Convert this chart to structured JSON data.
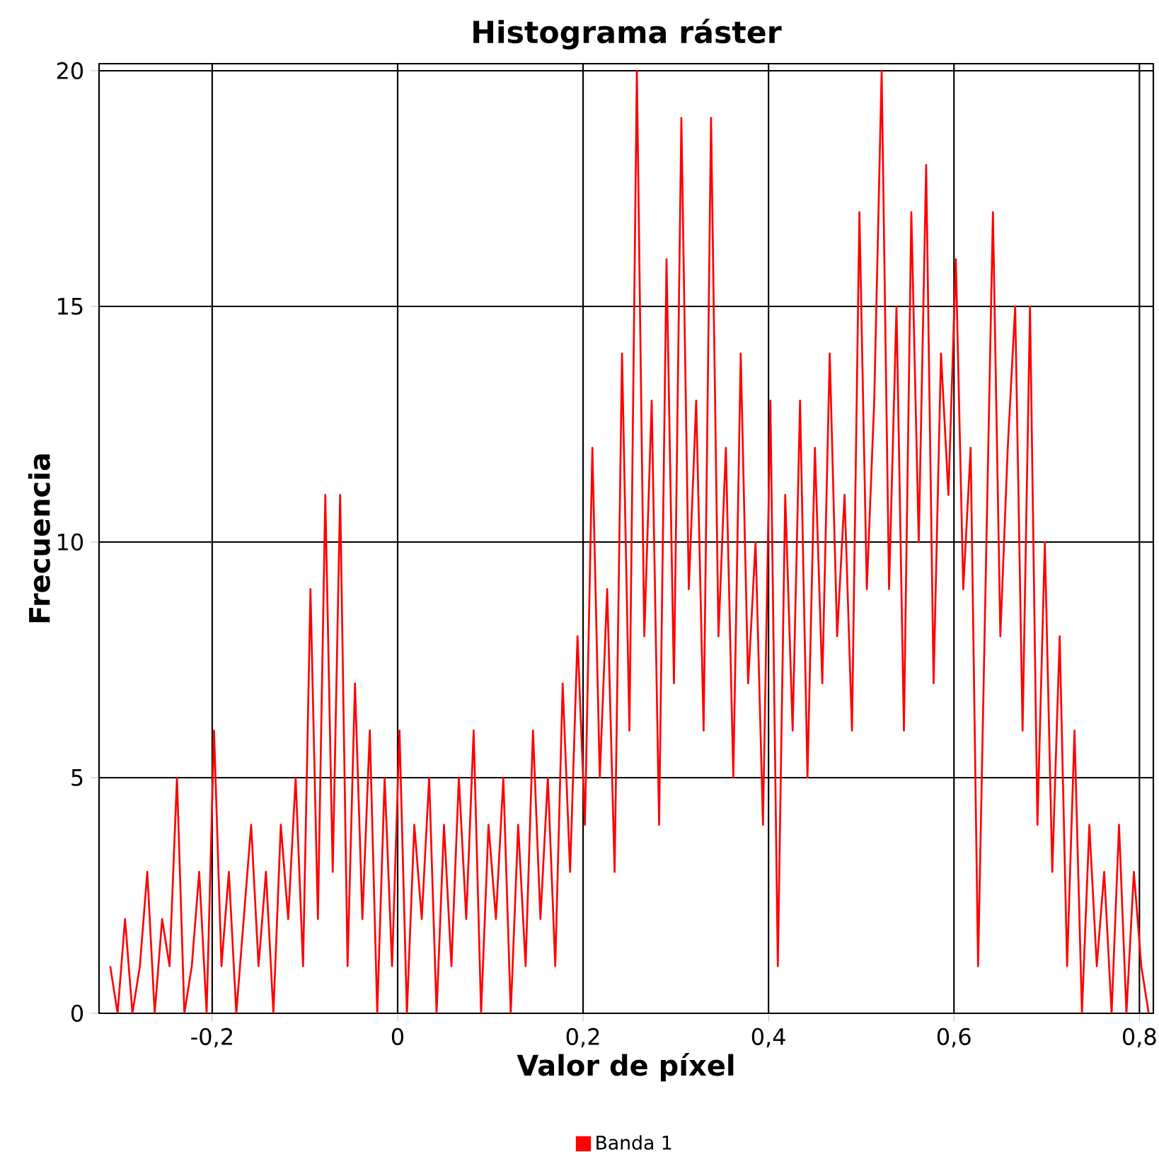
{
  "chart_data": {
    "type": "line",
    "title": "Histograma ráster",
    "xlabel": "Valor de píxel",
    "ylabel": "Frecuencia",
    "x": [
      -0.31,
      -0.302,
      -0.294,
      -0.286,
      -0.278,
      -0.27,
      -0.262,
      -0.254,
      -0.246,
      -0.238,
      -0.23,
      -0.222,
      -0.214,
      -0.206,
      -0.198,
      -0.19,
      -0.182,
      -0.174,
      -0.166,
      -0.158,
      -0.15,
      -0.142,
      -0.134,
      -0.126,
      -0.118,
      -0.11,
      -0.102,
      -0.094,
      -0.086,
      -0.078,
      -0.07,
      -0.062,
      -0.054,
      -0.046,
      -0.038,
      -0.03,
      -0.022,
      -0.014,
      -0.006,
      0.002,
      0.01,
      0.018,
      0.026,
      0.034,
      0.042,
      0.05,
      0.058,
      0.066,
      0.074,
      0.082,
      0.09,
      0.098,
      0.106,
      0.114,
      0.122,
      0.13,
      0.138,
      0.146,
      0.154,
      0.162,
      0.17,
      0.178,
      0.186,
      0.194,
      0.202,
      0.21,
      0.218,
      0.226,
      0.234,
      0.242,
      0.25,
      0.258,
      0.266,
      0.274,
      0.282,
      0.29,
      0.298,
      0.306,
      0.314,
      0.322,
      0.33,
      0.338,
      0.346,
      0.354,
      0.362,
      0.37,
      0.378,
      0.386,
      0.394,
      0.402,
      0.41,
      0.418,
      0.426,
      0.434,
      0.442,
      0.45,
      0.458,
      0.466,
      0.474,
      0.482,
      0.49,
      0.498,
      0.506,
      0.514,
      0.522,
      0.53,
      0.538,
      0.546,
      0.554,
      0.562,
      0.57,
      0.578,
      0.586,
      0.594,
      0.602,
      0.61,
      0.618,
      0.626,
      0.634,
      0.642,
      0.65,
      0.658,
      0.666,
      0.674,
      0.682,
      0.69,
      0.698,
      0.706,
      0.714,
      0.722,
      0.73,
      0.738,
      0.746,
      0.754,
      0.762,
      0.77,
      0.778,
      0.786,
      0.794,
      0.802,
      0.81
    ],
    "series": [
      {
        "name": "Banda 1",
        "color": "#ff0000",
        "values": [
          1,
          0,
          2,
          0,
          1,
          3,
          0,
          2,
          1,
          5,
          0,
          1,
          3,
          0,
          6,
          1,
          3,
          0,
          2,
          4,
          1,
          3,
          0,
          4,
          2,
          5,
          1,
          9,
          2,
          11,
          3,
          11,
          1,
          7,
          2,
          6,
          0,
          5,
          1,
          6,
          0,
          4,
          2,
          5,
          0,
          4,
          1,
          5,
          2,
          6,
          0,
          4,
          2,
          5,
          0,
          4,
          1,
          6,
          2,
          5,
          1,
          7,
          3,
          8,
          4,
          12,
          5,
          9,
          3,
          14,
          6,
          20,
          8,
          13,
          4,
          16,
          7,
          19,
          9,
          13,
          6,
          19,
          8,
          12,
          5,
          14,
          7,
          10,
          4,
          13,
          1,
          11,
          6,
          13,
          5,
          12,
          7,
          14,
          8,
          11,
          6,
          17,
          9,
          13,
          20,
          9,
          15,
          6,
          17,
          10,
          18,
          7,
          14,
          11,
          16,
          9,
          12,
          1,
          9,
          17,
          8,
          12,
          15,
          6,
          15,
          4,
          10,
          3,
          8,
          1,
          6,
          0,
          4,
          1,
          3,
          0,
          4,
          0,
          3,
          1,
          0
        ]
      }
    ],
    "xlim": [
      -0.322,
      0.815
    ],
    "ylim": [
      0,
      20.15
    ],
    "xticks": [
      {
        "value": -0.2,
        "label": "-0,2"
      },
      0,
      {
        "value": 0.2,
        "label": "0,2"
      },
      {
        "value": 0.4,
        "label": "0,4"
      },
      {
        "value": 0.6,
        "label": "0,6"
      },
      {
        "value": 0.8,
        "label": "0,8"
      }
    ],
    "yticks": [
      0,
      5,
      10,
      15,
      20
    ],
    "grid": true,
    "legend": "bottom",
    "marker": "none",
    "line_style": "solid"
  }
}
